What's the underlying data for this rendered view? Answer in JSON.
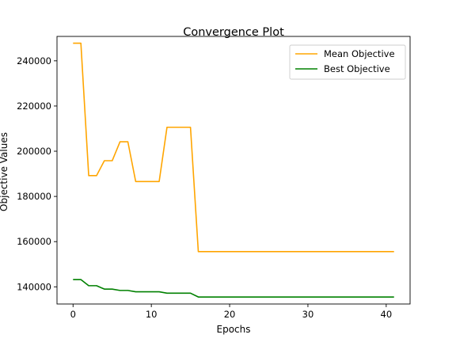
{
  "chart_data": {
    "type": "line",
    "title": "Convergence Plot",
    "xlabel": "Epochs",
    "ylabel": "Objective Values",
    "xlim": [
      -2.05,
      43.05
    ],
    "ylim": [
      132400,
      250800
    ],
    "xticks": [
      0,
      10,
      20,
      30,
      40
    ],
    "yticks": [
      140000,
      160000,
      180000,
      200000,
      220000,
      240000
    ],
    "grid": false,
    "legend_position": "top-right",
    "x": [
      0,
      1,
      2,
      3,
      4,
      5,
      6,
      7,
      8,
      9,
      10,
      11,
      12,
      13,
      14,
      15,
      16,
      17,
      18,
      19,
      20,
      21,
      22,
      23,
      24,
      25,
      26,
      27,
      28,
      29,
      30,
      31,
      32,
      33,
      34,
      35,
      36,
      37,
      38,
      39,
      40,
      41
    ],
    "series": [
      {
        "name": "Mean Objective",
        "color": "#ffa500",
        "values": [
          247800,
          247800,
          189200,
          189200,
          195800,
          195800,
          204200,
          204200,
          186600,
          186600,
          186600,
          186600,
          210600,
          210600,
          210600,
          210600,
          155600,
          155600,
          155600,
          155600,
          155600,
          155600,
          155600,
          155600,
          155600,
          155600,
          155600,
          155600,
          155600,
          155600,
          155600,
          155600,
          155600,
          155600,
          155600,
          155600,
          155600,
          155600,
          155600,
          155600,
          155600,
          155600
        ]
      },
      {
        "name": "Best Objective",
        "color": "#008000",
        "values": [
          143200,
          143200,
          140500,
          140500,
          139000,
          139000,
          138400,
          138400,
          137800,
          137800,
          137800,
          137800,
          137200,
          137200,
          137200,
          137200,
          135500,
          135500,
          135500,
          135500,
          135500,
          135500,
          135500,
          135500,
          135500,
          135500,
          135500,
          135500,
          135500,
          135500,
          135500,
          135500,
          135500,
          135500,
          135500,
          135500,
          135500,
          135500,
          135500,
          135500,
          135500,
          135500
        ]
      }
    ]
  }
}
